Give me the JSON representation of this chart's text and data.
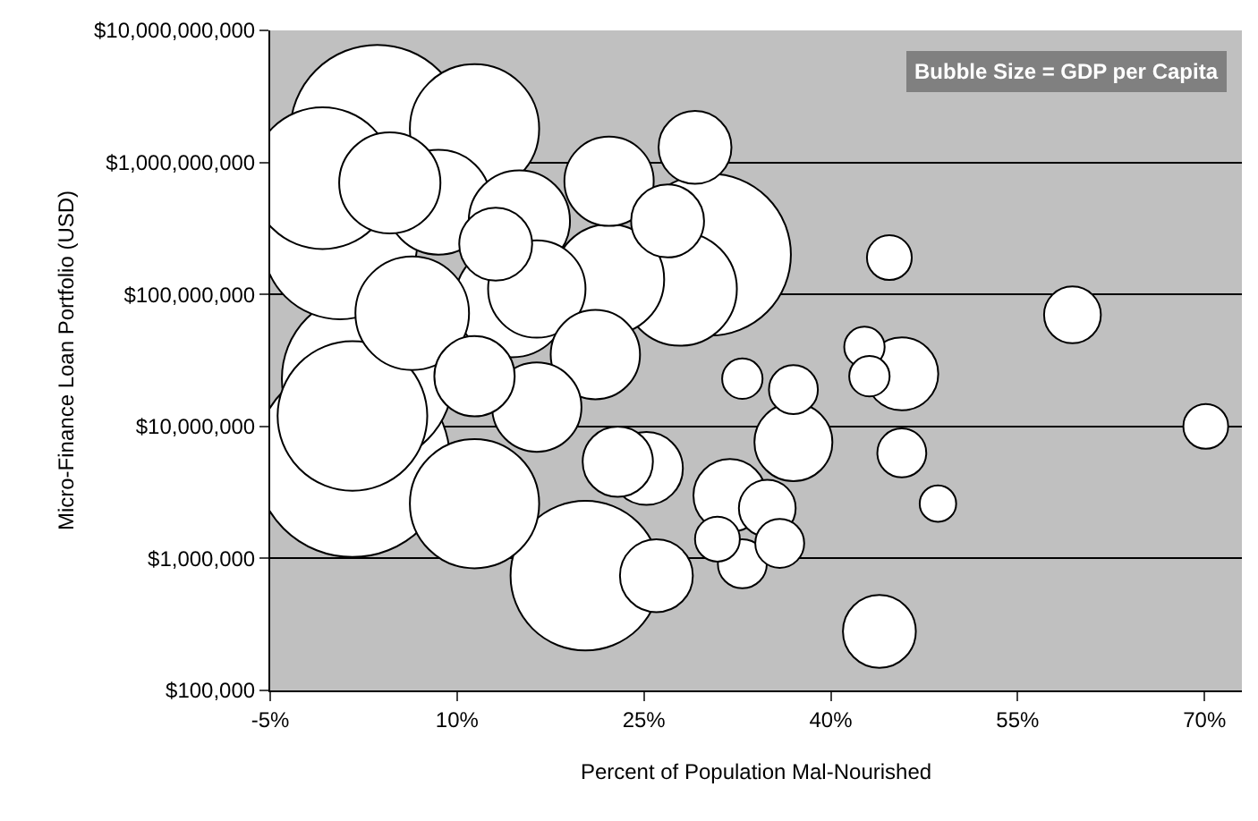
{
  "chart_data": {
    "type": "bubble",
    "xlabel": "Percent of Population Mal-Nourished",
    "ylabel": "Micro-Finance Loan Portfolio (USD)",
    "annotations": [
      "Bubble Size = GDP per Capita"
    ],
    "x": [
      1.6,
      3.6,
      2.8,
      30.3,
      0.6,
      1.6,
      20.3,
      -0.8,
      11.4,
      11.4,
      14.4,
      27.9,
      6.4,
      22.2,
      8.5,
      4.6,
      15.0,
      16.4,
      22.2,
      21.1,
      16.4,
      11.4,
      37.0,
      13.1,
      25.2,
      29.1,
      26.9,
      45.7,
      31.9,
      26.0,
      43.9,
      22.9,
      34.9,
      59.4,
      37.0,
      45.7,
      32.9,
      35.9,
      44.7,
      30.9,
      70.1,
      42.7,
      43.1,
      32.9,
      48.6
    ],
    "values": [
      5600000,
      1700000000,
      23000000,
      200000000,
      250000000,
      12000000,
      740000,
      760000000,
      1800000000,
      2600000,
      90000000,
      110000000,
      72000000,
      130000000,
      500000000,
      700000000,
      360000000,
      110000000,
      720000000,
      35000000,
      14000000,
      24000000,
      7600000,
      240000000,
      4800000,
      1300000000,
      360000000,
      25000000,
      3000000,
      740000,
      280000,
      5400000,
      2400000,
      70000000,
      19000000,
      6300000,
      910000,
      1300000,
      190000000,
      1400000,
      10000000,
      40000000,
      24000000,
      23000000,
      2600000
    ],
    "sizes": [
      1,
      0.8,
      0.77,
      0.69,
      0.63,
      0.59,
      0.59,
      0.53,
      0.44,
      0.44,
      0.34,
      0.34,
      0.34,
      0.32,
      0.29,
      0.27,
      0.27,
      0.25,
      0.21,
      0.21,
      0.21,
      0.17,
      0.16,
      0.14,
      0.14,
      0.14,
      0.14,
      0.14,
      0.14,
      0.14,
      0.14,
      0.13,
      0.085,
      0.085,
      0.063,
      0.063,
      0.063,
      0.063,
      0.053,
      0.053,
      0.053,
      0.043,
      0.043,
      0.043,
      0.035
    ],
    "color": "#ffffff",
    "marker": "circle",
    "log": "y",
    "grid": "y",
    "legend": false,
    "xlim": [
      -5,
      73
    ],
    "xticks": [
      {
        "value": -5,
        "label": "-5%"
      },
      {
        "value": 10,
        "label": "10%"
      },
      {
        "value": 25,
        "label": "25%"
      },
      {
        "value": 40,
        "label": "40%"
      },
      {
        "value": 55,
        "label": "55%"
      },
      {
        "value": 70,
        "label": "70%"
      }
    ],
    "ylim": [
      100000,
      10000000000
    ],
    "yticks": [
      {
        "value": 100000,
        "label": "$100,000"
      },
      {
        "value": 1000000,
        "label": "$1,000,000"
      },
      {
        "value": 10000000,
        "label": "$10,000,000"
      },
      {
        "value": 100000000,
        "label": "$100,000,000"
      },
      {
        "value": 1000000000,
        "label": "$1,000,000,000"
      },
      {
        "value": 10000000000,
        "label": "$10,000,000,000"
      }
    ]
  }
}
